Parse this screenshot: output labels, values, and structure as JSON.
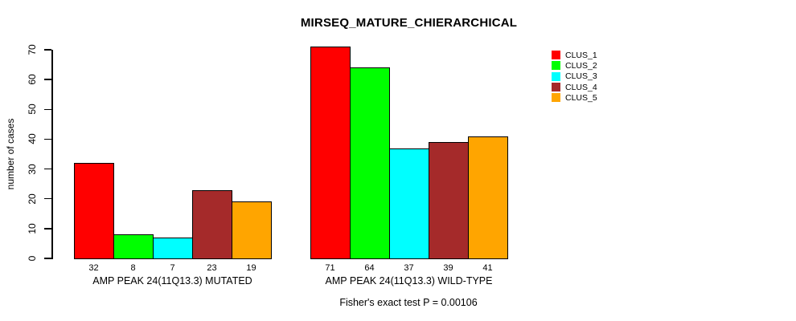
{
  "page": {
    "background": "#ffffff",
    "text_color": "#000000"
  },
  "chart_data": {
    "type": "bar",
    "title": "MIRSEQ_MATURE_CHIERARCHICAL",
    "subtitle": "Fisher's exact test P = 0.00106",
    "ylabel": "number of cases",
    "xlabel": "",
    "ylim": [
      0,
      70
    ],
    "yticks": [
      0,
      10,
      20,
      30,
      40,
      50,
      60,
      70
    ],
    "grid": false,
    "legend_position": "top-right",
    "bar_borders": "#000000",
    "categories": [
      "AMP PEAK 24(11Q13.3) MUTATED",
      "AMP PEAK 24(11Q13.3) WILD-TYPE"
    ],
    "series": [
      {
        "name": "CLUS_1",
        "color": "#FF0000",
        "values": [
          32,
          71
        ]
      },
      {
        "name": "CLUS_2",
        "color": "#00FF00",
        "values": [
          8,
          64
        ]
      },
      {
        "name": "CLUS_3",
        "color": "#00FFFF",
        "values": [
          7,
          37
        ]
      },
      {
        "name": "CLUS_4",
        "color": "#A52A2A",
        "values": [
          23,
          39
        ]
      },
      {
        "name": "CLUS_5",
        "color": "#FFA500",
        "values": [
          19,
          41
        ]
      }
    ],
    "value_labels_shown": true
  }
}
